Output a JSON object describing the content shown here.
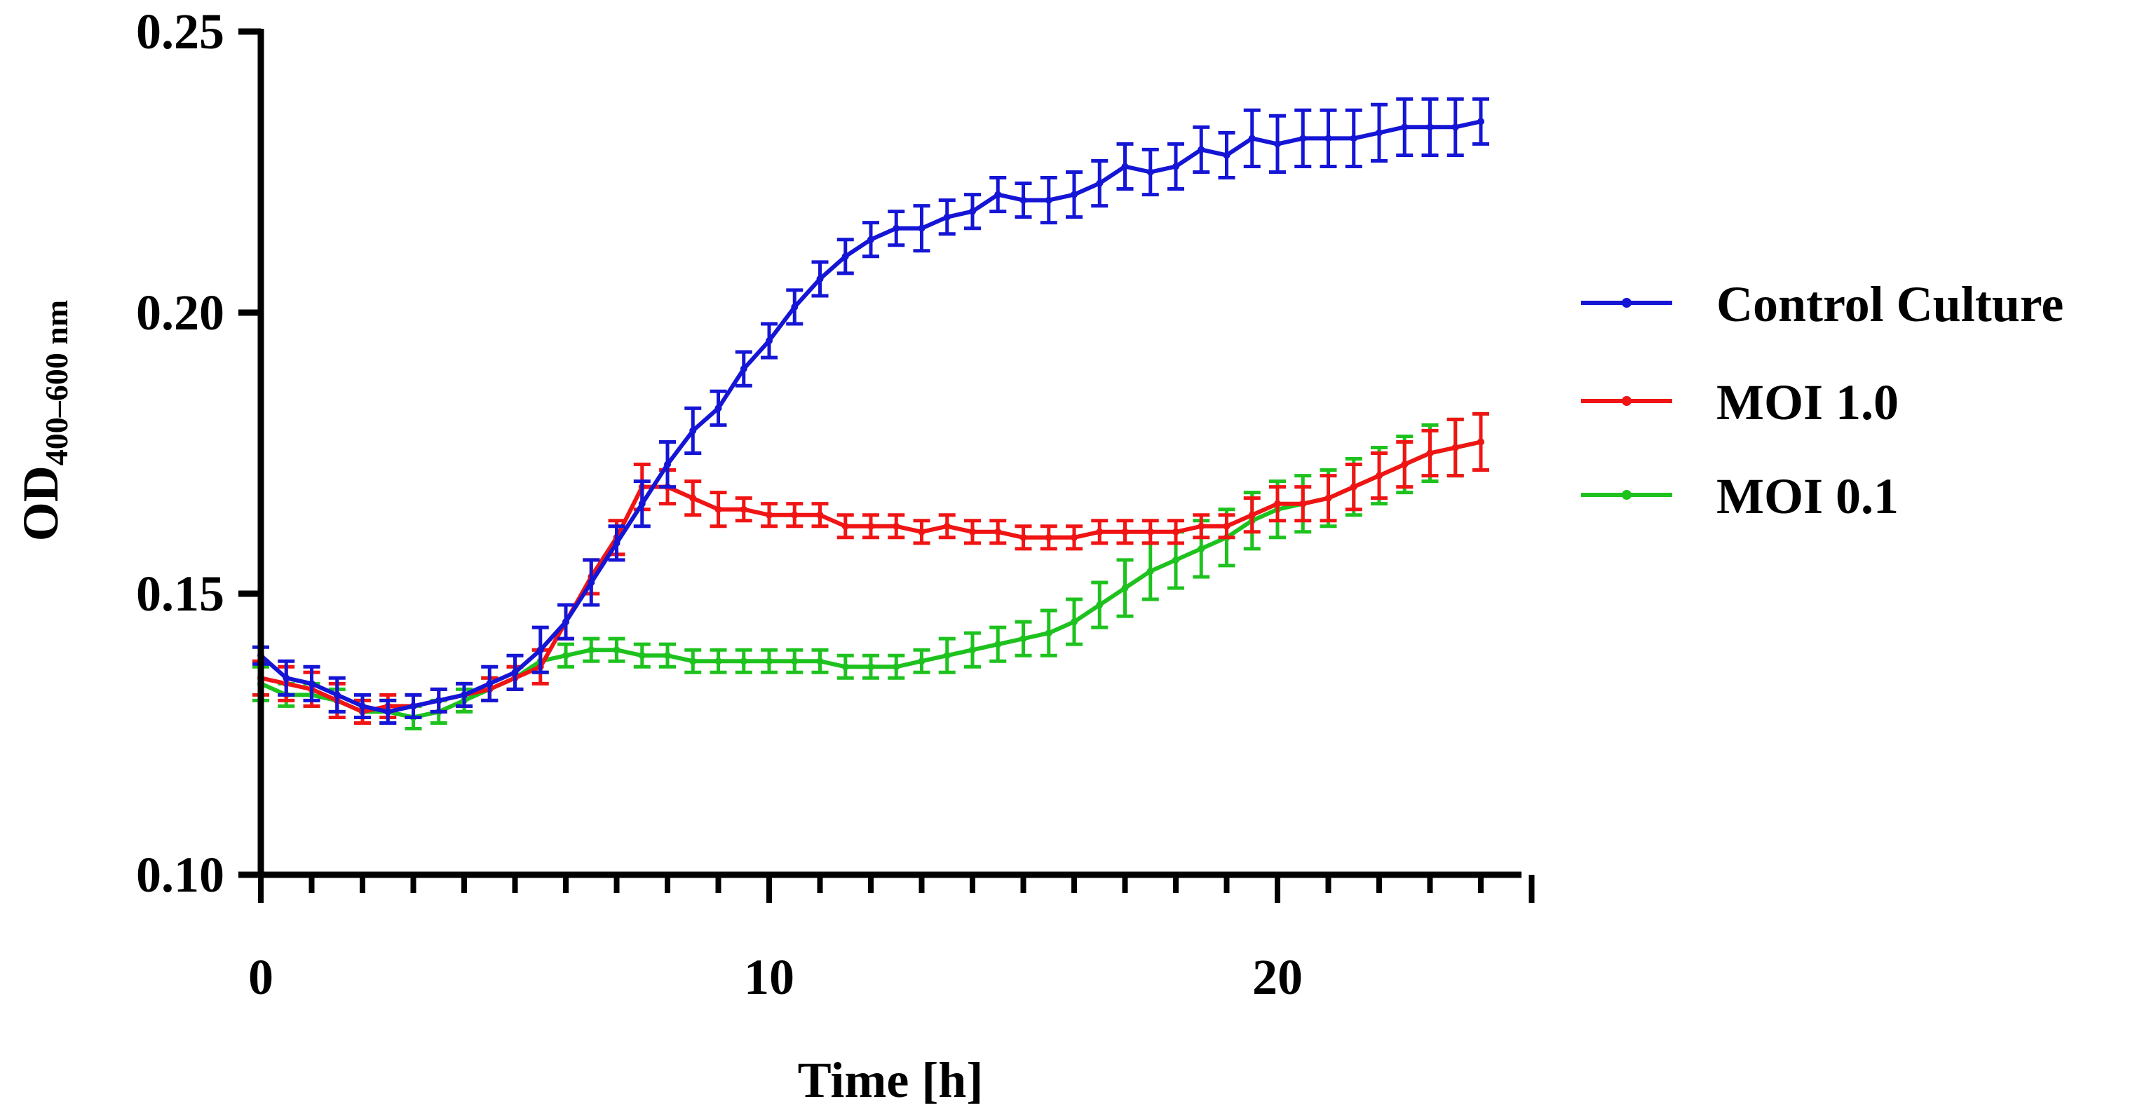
{
  "chart_data": {
    "type": "line",
    "title": "",
    "xlabel": "Time [h]",
    "ylabel_main": "OD",
    "ylabel_sub": "400–600 nm",
    "xlim": [
      0,
      25
    ],
    "ylim": [
      0.1,
      0.25
    ],
    "x_ticks": [
      "0",
      "10",
      "20"
    ],
    "x_tick_values": [
      0,
      10,
      20
    ],
    "y_ticks": [
      "0.10",
      "0.15",
      "0.20",
      "0.25"
    ],
    "y_tick_values": [
      0.1,
      0.15,
      0.2,
      0.25
    ],
    "x_minor_step": 1,
    "grid": false,
    "legend_position": "right",
    "x": [
      0,
      0.5,
      1,
      1.5,
      2,
      2.5,
      3,
      3.5,
      4,
      4.5,
      5,
      5.5,
      6,
      6.5,
      7,
      7.5,
      8,
      8.5,
      9,
      9.5,
      10,
      10.5,
      11,
      11.5,
      12,
      12.5,
      13,
      13.5,
      14,
      14.5,
      15,
      15.5,
      16,
      16.5,
      17,
      17.5,
      18,
      18.5,
      19,
      19.5,
      20,
      20.5,
      21,
      21.5,
      22,
      22.5,
      23,
      23.5,
      24
    ],
    "series": [
      {
        "name": "Control Culture",
        "color": "#1515d6",
        "values": [
          0.139,
          0.135,
          0.134,
          0.132,
          0.13,
          0.129,
          0.13,
          0.131,
          0.132,
          0.134,
          0.136,
          0.14,
          0.145,
          0.152,
          0.159,
          0.166,
          0.173,
          0.179,
          0.183,
          0.19,
          0.195,
          0.201,
          0.206,
          0.21,
          0.213,
          0.215,
          0.215,
          0.217,
          0.218,
          0.221,
          0.22,
          0.22,
          0.221,
          0.223,
          0.226,
          0.225,
          0.226,
          0.229,
          0.228,
          0.231,
          0.23,
          0.231,
          0.231,
          0.231,
          0.232,
          0.233,
          0.233,
          0.233,
          0.234
        ],
        "errors": [
          0.0015,
          0.003,
          0.003,
          0.003,
          0.002,
          0.002,
          0.002,
          0.002,
          0.002,
          0.003,
          0.003,
          0.004,
          0.003,
          0.004,
          0.003,
          0.004,
          0.004,
          0.004,
          0.003,
          0.003,
          0.003,
          0.003,
          0.003,
          0.003,
          0.003,
          0.003,
          0.004,
          0.003,
          0.003,
          0.003,
          0.003,
          0.004,
          0.004,
          0.004,
          0.004,
          0.004,
          0.004,
          0.004,
          0.004,
          0.005,
          0.005,
          0.005,
          0.005,
          0.005,
          0.005,
          0.005,
          0.005,
          0.005,
          0.004
        ]
      },
      {
        "name": "MOI 1.0",
        "color": "#f01414",
        "values": [
          0.135,
          0.134,
          0.133,
          0.131,
          0.129,
          0.13,
          0.13,
          0.131,
          0.132,
          0.133,
          0.135,
          0.137,
          0.145,
          0.153,
          0.16,
          0.169,
          0.169,
          0.167,
          0.165,
          0.165,
          0.164,
          0.164,
          0.164,
          0.162,
          0.162,
          0.162,
          0.161,
          0.162,
          0.161,
          0.161,
          0.16,
          0.16,
          0.16,
          0.161,
          0.161,
          0.161,
          0.161,
          0.162,
          0.162,
          0.164,
          0.166,
          0.166,
          0.167,
          0.169,
          0.171,
          0.173,
          0.175,
          0.176,
          0.177
        ],
        "errors": [
          0.003,
          0.003,
          0.003,
          0.003,
          0.002,
          0.002,
          0.002,
          0.002,
          0.002,
          0.002,
          0.002,
          0.003,
          0.003,
          0.003,
          0.003,
          0.004,
          0.003,
          0.003,
          0.003,
          0.002,
          0.002,
          0.002,
          0.002,
          0.002,
          0.002,
          0.002,
          0.002,
          0.002,
          0.002,
          0.002,
          0.002,
          0.002,
          0.002,
          0.002,
          0.002,
          0.002,
          0.002,
          0.002,
          0.002,
          0.003,
          0.003,
          0.003,
          0.004,
          0.004,
          0.004,
          0.004,
          0.004,
          0.005,
          0.005
        ]
      },
      {
        "name": "MOI 0.1",
        "color": "#1ec21e",
        "values": [
          0.134,
          0.132,
          0.132,
          0.131,
          0.129,
          0.129,
          0.128,
          0.129,
          0.131,
          0.133,
          0.135,
          0.138,
          0.139,
          0.14,
          0.14,
          0.139,
          0.139,
          0.138,
          0.138,
          0.138,
          0.138,
          0.138,
          0.138,
          0.137,
          0.137,
          0.137,
          0.138,
          0.139,
          0.14,
          0.141,
          0.142,
          0.143,
          0.145,
          0.148,
          0.151,
          0.154,
          0.156,
          0.158,
          0.16,
          0.163,
          0.165,
          0.166,
          0.167,
          0.169,
          0.171,
          0.173,
          0.175,
          0.176,
          0.177
        ],
        "errors": [
          0.003,
          0.002,
          0.002,
          0.002,
          0.002,
          0.002,
          0.002,
          0.002,
          0.002,
          0.002,
          0.002,
          0.002,
          0.002,
          0.002,
          0.002,
          0.002,
          0.002,
          0.002,
          0.002,
          0.002,
          0.002,
          0.002,
          0.002,
          0.002,
          0.002,
          0.002,
          0.002,
          0.003,
          0.003,
          0.003,
          0.003,
          0.004,
          0.004,
          0.004,
          0.005,
          0.005,
          0.005,
          0.005,
          0.005,
          0.005,
          0.005,
          0.005,
          0.005,
          0.005,
          0.005,
          0.005,
          0.005,
          0.005,
          0.005
        ]
      }
    ]
  }
}
